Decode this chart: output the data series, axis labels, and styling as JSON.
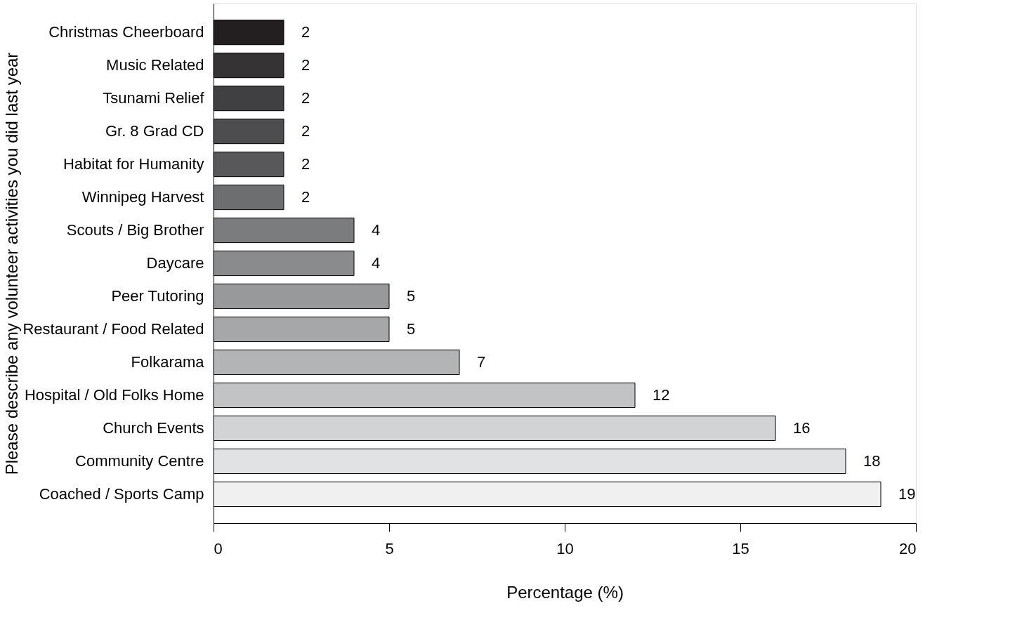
{
  "chart_data": {
    "type": "bar",
    "orientation": "horizontal",
    "ylabel": "Please describe any volunteer activities you did last year",
    "xlabel": "Percentage (%)",
    "categories": [
      "Christmas Cheerboard",
      "Music Related",
      "Tsunami Relief",
      "Gr. 8 Grad CD",
      "Habitat for Humanity",
      "Winnipeg Harvest",
      "Scouts / Big Brother",
      "Daycare",
      "Peer Tutoring",
      "Restaurant / Food Related",
      "Folkarama",
      "Hospital / Old Folks Home",
      "Church Events",
      "Community Centre",
      "Coached / Sports Camp"
    ],
    "values": [
      2,
      2,
      2,
      2,
      2,
      2,
      4,
      4,
      5,
      5,
      7,
      12,
      16,
      18,
      19
    ],
    "colors": [
      "#231f20",
      "#353334",
      "#404042",
      "#4d4d4f",
      "#58585a",
      "#6d6e70",
      "#7b7c7e",
      "#8a8b8d",
      "#98999b",
      "#a6a7a9",
      "#b3b4b6",
      "#c2c3c5",
      "#d2d3d4",
      "#e1e2e3",
      "#f0f0f0"
    ],
    "xlim": [
      0,
      20
    ],
    "xticks": [
      0,
      5,
      10,
      15,
      20
    ],
    "data_labels": true,
    "grid": false
  }
}
